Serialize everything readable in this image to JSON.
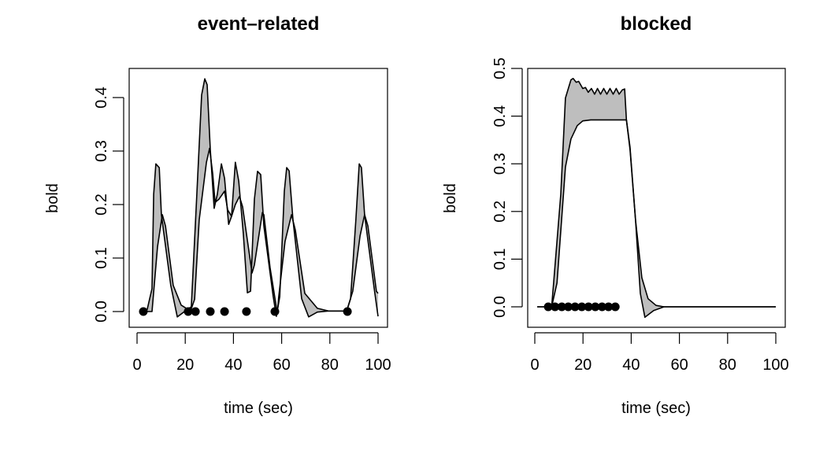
{
  "chart_data": [
    {
      "type": "area",
      "title": "event–related",
      "xlabel": "time (sec)",
      "ylabel": "bold",
      "xlim": [
        0,
        100
      ],
      "ylim": [
        -0.03,
        0.46
      ],
      "xticks": [
        0,
        20,
        40,
        60,
        80,
        100
      ],
      "xtick_labels": [
        "0",
        "20",
        "40",
        "60",
        "80",
        "100"
      ],
      "yticks": [
        0.0,
        0.1,
        0.2,
        0.3,
        0.4
      ],
      "ytick_labels": [
        "0.0",
        "0.1",
        "0.2",
        "0.3",
        "0.4"
      ],
      "grid": false,
      "band_fill": "#bebebe",
      "line_color": "#000000",
      "series": [
        {
          "name": "upper",
          "x": [
            3,
            4.2,
            6.2,
            6.9,
            7.8,
            9.2,
            10.1,
            14,
            16.7,
            20.6,
            22.5,
            24.8,
            26.8,
            28.1,
            29.1,
            30.4,
            32,
            33.3,
            35,
            36.3,
            38,
            39.2,
            40.8,
            42.2,
            44.1,
            45.8,
            47.1,
            48.7,
            50,
            51.3,
            52.6,
            56.5,
            57.8,
            59.2,
            61.1,
            62.1,
            63.1,
            64.7,
            68.3,
            71.2,
            74.8,
            79.4,
            87,
            88.6,
            90.8,
            92.2,
            93.1,
            94.4,
            98.4,
            100
          ],
          "y": [
            0,
            0.004,
            0.043,
            0.219,
            0.276,
            0.269,
            0.181,
            0.049,
            -0.01,
            0.003,
            0.009,
            0.219,
            0.405,
            0.435,
            0.424,
            0.303,
            0.193,
            0.219,
            0.276,
            0.249,
            0.163,
            0.178,
            0.279,
            0.244,
            0.146,
            0.035,
            0.038,
            0.21,
            0.262,
            0.256,
            0.16,
            0.028,
            -0.009,
            0.028,
            0.225,
            0.269,
            0.263,
            0.171,
            0.024,
            -0.01,
            -0.001,
            0.001,
            0.001,
            0.024,
            0.171,
            0.276,
            0.269,
            0.181,
            0.043,
            -0.009
          ]
        },
        {
          "name": "lower",
          "x": [
            3,
            6.2,
            8.5,
            10.5,
            11.8,
            15,
            18.3,
            22.2,
            23.9,
            25.8,
            28.8,
            30.1,
            31.4,
            32.4,
            34,
            36.3,
            37.6,
            39.2,
            40.8,
            42.5,
            43.8,
            47.7,
            48.7,
            52,
            52.6,
            55.2,
            58.2,
            58.8,
            61.4,
            64.1,
            65.7,
            69.6,
            74.8,
            79.4,
            87,
            89.5,
            92.5,
            94.4,
            95.8,
            99.3,
            100
          ],
          "y": [
            0,
            0,
            0.121,
            0.181,
            0.16,
            0.049,
            0.012,
            0.001,
            0.023,
            0.171,
            0.279,
            0.305,
            0.257,
            0.204,
            0.21,
            0.225,
            0.19,
            0.178,
            0.2,
            0.215,
            0.196,
            0.072,
            0.087,
            0.185,
            0.181,
            0.082,
            -0.003,
            0.028,
            0.131,
            0.181,
            0.152,
            0.034,
            0.006,
            0.001,
            0.001,
            0.038,
            0.141,
            0.181,
            0.16,
            0.038,
            0.034
          ]
        }
      ],
      "events": {
        "x": [
          2.6,
          21.2,
          24.2,
          30.4,
          36.3,
          45.4,
          57.2,
          87.3
        ],
        "y": [
          0,
          0,
          0,
          0,
          0,
          0,
          0,
          0
        ]
      }
    },
    {
      "type": "area",
      "title": "blocked",
      "xlabel": "time (sec)",
      "ylabel": "bold",
      "xlim": [
        0,
        100
      ],
      "ylim": [
        -0.045,
        0.5
      ],
      "xticks": [
        0,
        20,
        40,
        60,
        80,
        100
      ],
      "xtick_labels": [
        "0",
        "20",
        "40",
        "60",
        "80",
        "100"
      ],
      "yticks": [
        0.0,
        0.1,
        0.2,
        0.3,
        0.4,
        0.5
      ],
      "ytick_labels": [
        "0.0",
        "0.1",
        "0.2",
        "0.3",
        "0.4",
        "0.5"
      ],
      "grid": false,
      "band_fill": "#bebebe",
      "line_color": "#000000",
      "series": [
        {
          "name": "upper",
          "x": [
            1,
            7,
            7.8,
            10.8,
            12.7,
            15,
            15.9,
            17.2,
            18.2,
            19.9,
            21,
            22.2,
            23.5,
            24.8,
            26,
            27.3,
            28.6,
            29.9,
            31.2,
            32.5,
            33.8,
            35,
            36.3,
            37.3,
            38,
            39.5,
            41.8,
            43.8,
            45.7,
            49.3,
            53.6,
            60,
            100
          ],
          "y": [
            0,
            0,
            0.05,
            0.236,
            0.438,
            0.476,
            0.479,
            0.471,
            0.473,
            0.458,
            0.46,
            0.45,
            0.458,
            0.446,
            0.458,
            0.446,
            0.458,
            0.446,
            0.458,
            0.446,
            0.458,
            0.446,
            0.455,
            0.457,
            0.393,
            0.335,
            0.182,
            0.028,
            -0.022,
            -0.008,
            0,
            0,
            0
          ]
        },
        {
          "name": "lower",
          "x": [
            1,
            7,
            9.2,
            11.1,
            12.7,
            15,
            17.6,
            19.9,
            23.2,
            38,
            39.5,
            41.8,
            44.4,
            47,
            50.3,
            53.6,
            60,
            100
          ],
          "y": [
            0,
            0,
            0.05,
            0.182,
            0.293,
            0.352,
            0.38,
            0.39,
            0.392,
            0.392,
            0.33,
            0.182,
            0.061,
            0.017,
            0.003,
            0,
            0,
            0
          ]
        }
      ],
      "events": {
        "x": [
          5.6,
          8.4,
          11.2,
          13.9,
          16.7,
          19.5,
          22.3,
          25.1,
          27.9,
          30.6,
          33.4
        ],
        "y": [
          0,
          0,
          0,
          0,
          0,
          0,
          0,
          0,
          0,
          0,
          0
        ]
      }
    }
  ]
}
